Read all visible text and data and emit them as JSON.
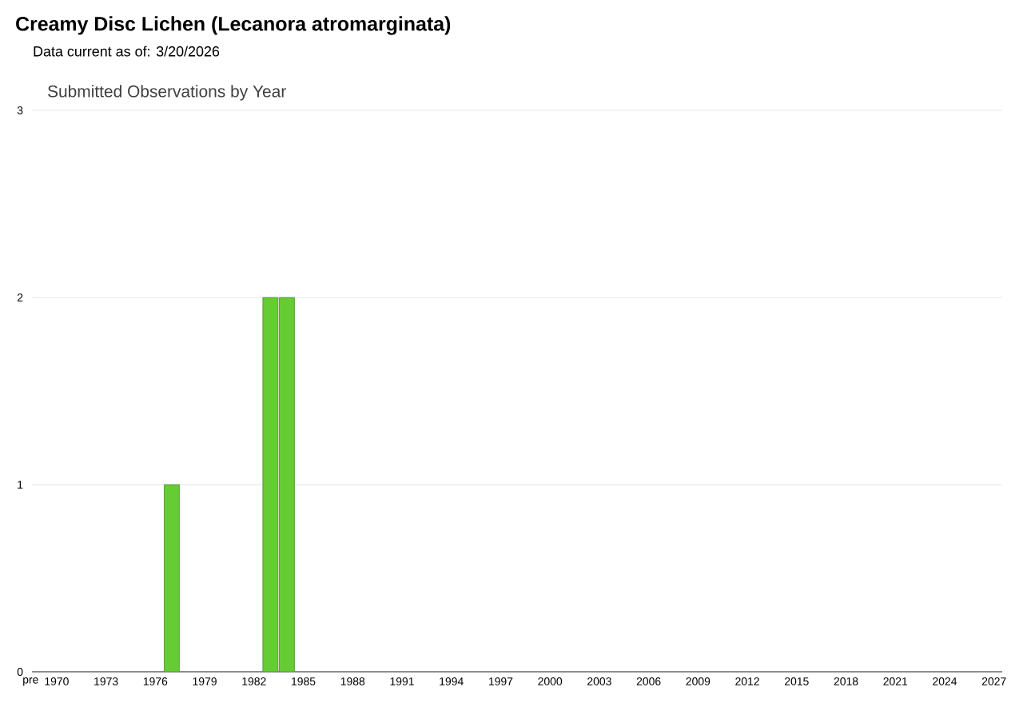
{
  "chart_data": {
    "type": "bar",
    "title": "Creamy Disc Lichen   (Lecanora atromarginata)",
    "subtitle": "Data current as of: 3/20/2026",
    "annotations": [
      "Submitted Observations by Year"
    ],
    "categories": [
      "pre",
      "1970",
      null,
      null,
      "1973",
      null,
      null,
      "1976",
      null,
      null,
      "1979",
      null,
      null,
      "1982",
      null,
      null,
      "1985",
      null,
      null,
      "1988",
      null,
      null,
      "1991",
      null,
      null,
      "1994",
      null,
      null,
      "1997",
      null,
      null,
      "2000",
      null,
      null,
      "2003",
      null,
      null,
      "2006",
      null,
      null,
      "2009",
      null,
      null,
      "2012",
      null,
      null,
      "2015",
      null,
      null,
      "2018",
      null,
      null,
      "2021",
      null,
      null,
      "2024",
      null,
      null,
      "2027"
    ],
    "values": [
      0,
      0,
      0,
      0,
      0,
      0,
      0,
      0,
      1,
      0,
      0,
      0,
      0,
      0,
      2,
      2,
      0,
      0,
      0,
      0,
      0,
      0,
      0,
      0,
      0,
      0,
      0,
      0,
      0,
      0,
      0,
      0,
      0,
      0,
      0,
      0,
      0,
      0,
      0,
      0,
      0,
      0,
      0,
      0,
      0,
      0,
      0,
      0,
      0,
      0,
      0,
      0,
      0,
      0,
      0,
      0,
      0,
      0,
      0
    ],
    "color": "#66cc33",
    "ylim": [
      0,
      3
    ],
    "yticks": [
      0,
      1,
      2,
      3
    ],
    "grid": "y"
  }
}
